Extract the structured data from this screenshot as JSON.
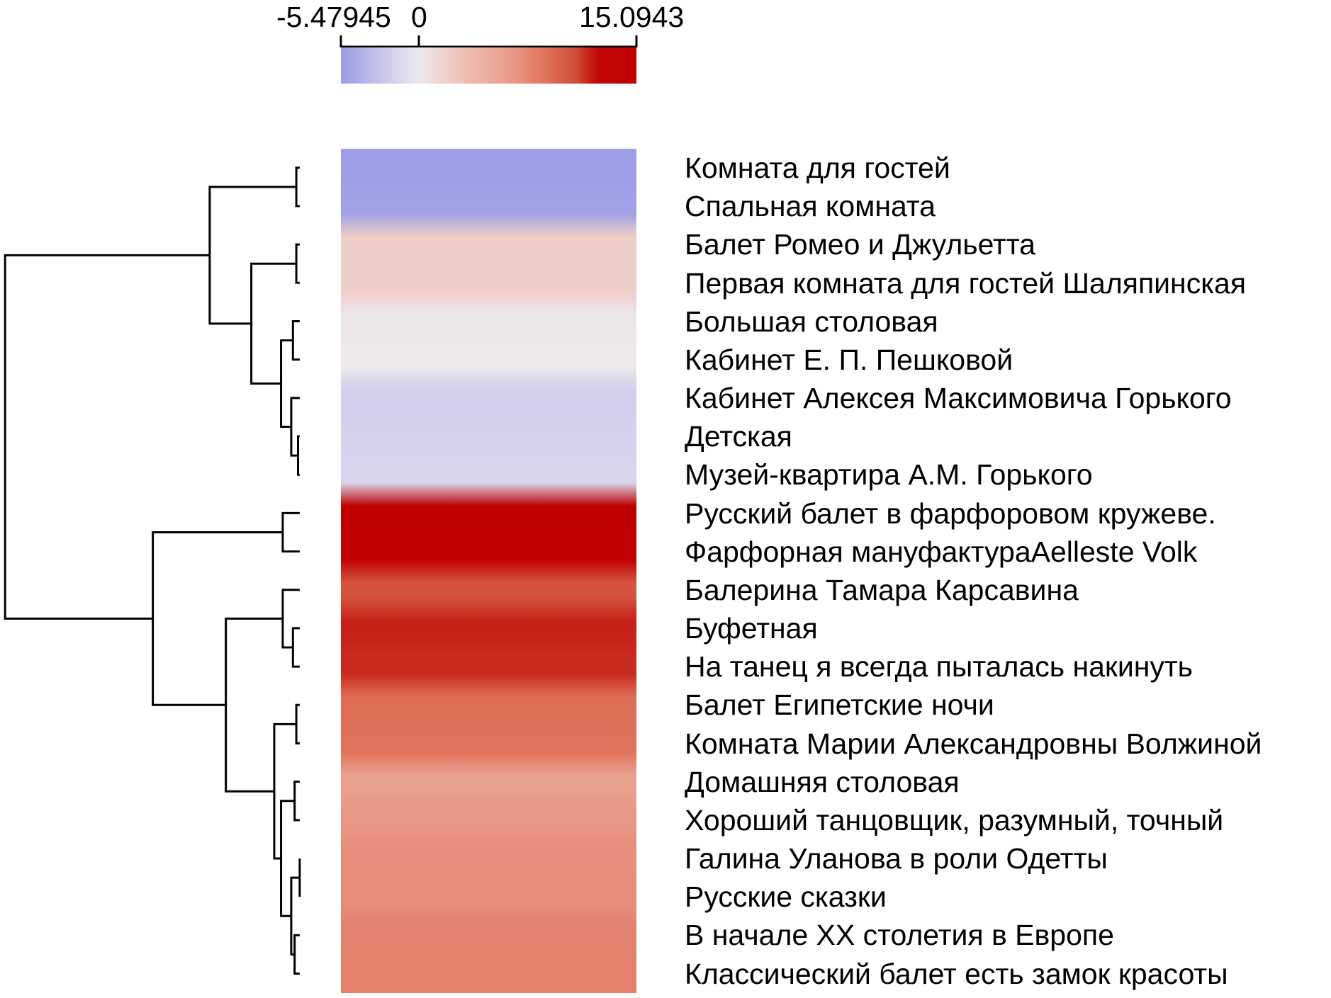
{
  "chart_data": {
    "type": "heatmap",
    "title": "",
    "colorbar": {
      "min": -5.47945,
      "max": 15.0943,
      "tick_labels": [
        "-5.47945",
        "0",
        "15.0943"
      ],
      "tick_values": [
        -5.47945,
        0,
        15.0943
      ],
      "colors": {
        "low": "#9b9be6",
        "mid": "#ece8ec",
        "high": "#c00000"
      }
    },
    "rows": [
      {
        "label": "Комната для гостей",
        "value": -5.3
      },
      {
        "label": "Спальная комната",
        "value": -5.1
      },
      {
        "label": "Балет Ромео и Джульетта",
        "value": 2.0
      },
      {
        "label": "Первая комната для гостей Шаляпинская",
        "value": 2.0
      },
      {
        "label": "Большая столовая",
        "value": 0.2
      },
      {
        "label": "Кабинет Е. П. Пешковой",
        "value": 0.0
      },
      {
        "label": "Кабинет Алексея Максимовича Горького",
        "value": -2.0
      },
      {
        "label": "Детская",
        "value": -1.8
      },
      {
        "label": "Музей-квартира А.М. Горького",
        "value": -1.6
      },
      {
        "label": "Русский балет в фарфоровом кружеве.",
        "value": 15.0
      },
      {
        "label": "Фарфорная мануфактураAelleste Volk",
        "value": 14.8
      },
      {
        "label": "Балерина Тамара Карсавина",
        "value": 10.5
      },
      {
        "label": "Буфетная",
        "value": 11.8
      },
      {
        "label": "На танец я всегда пыталась накинуть",
        "value": 11.6
      },
      {
        "label": "Балет Египетские ночи",
        "value": 9.0
      },
      {
        "label": "Комната Марии Александровны Волжиной",
        "value": 8.9
      },
      {
        "label": "Домашняя столовая",
        "value": 6.0
      },
      {
        "label": "Хороший танцовщик, разумный, точный",
        "value": 6.6
      },
      {
        "label": "Галина Уланова в роли Одетты",
        "value": 7.1
      },
      {
        "label": "Русские сказки",
        "value": 7.2
      },
      {
        "label": "В начале XX столетия в Европе",
        "value": 7.8
      },
      {
        "label": "Классический балет есть замок красоты",
        "value": 8.0
      }
    ],
    "dendrogram": "row clustering, left side",
    "grid": false
  }
}
